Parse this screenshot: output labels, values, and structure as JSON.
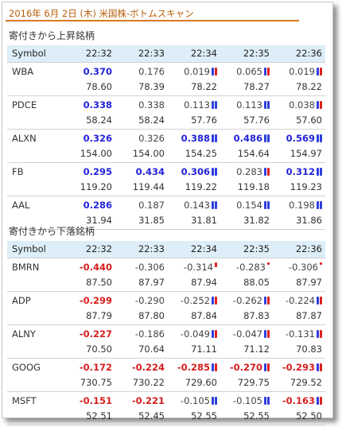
{
  "title": "2016年 6月 2日 (木) 米国株-ボトムスキャン",
  "gainers": {
    "section_title": "寄付きから上昇銘柄",
    "header": [
      "Symbol",
      "22:32",
      "22:33",
      "22:34",
      "22:35",
      "22:36"
    ],
    "rows": [
      {
        "symbol": "WBA",
        "rates": [
          {
            "v": "0.370",
            "s": "pos",
            "m": ""
          },
          {
            "v": "0.176",
            "s": "plain",
            "m": ""
          },
          {
            "v": "0.019",
            "s": "plain",
            "m": "br"
          },
          {
            "v": "0.065",
            "s": "plain",
            "m": "br"
          },
          {
            "v": "0.019",
            "s": "plain",
            "m": "br"
          }
        ],
        "prices": [
          "78.60",
          "78.39",
          "78.22",
          "78.27",
          "78.22"
        ]
      },
      {
        "symbol": "PDCE",
        "rates": [
          {
            "v": "0.338",
            "s": "pos",
            "m": ""
          },
          {
            "v": "0.338",
            "s": "plain",
            "m": ""
          },
          {
            "v": "0.113",
            "s": "plain",
            "m": "bb"
          },
          {
            "v": "0.113",
            "s": "plain",
            "m": "bb"
          },
          {
            "v": "0.038",
            "s": "plain",
            "m": "br"
          }
        ],
        "prices": [
          "58.24",
          "58.24",
          "57.76",
          "57.76",
          "57.60"
        ]
      },
      {
        "symbol": "ALXN",
        "rates": [
          {
            "v": "0.326",
            "s": "pos",
            "m": ""
          },
          {
            "v": "0.326",
            "s": "plain",
            "m": ""
          },
          {
            "v": "0.388",
            "s": "pos",
            "m": "bb"
          },
          {
            "v": "0.486",
            "s": "pos",
            "m": "bb"
          },
          {
            "v": "0.569",
            "s": "pos",
            "m": "bb"
          }
        ],
        "prices": [
          "154.00",
          "154.00",
          "154.25",
          "154.64",
          "154.97"
        ]
      },
      {
        "symbol": "FB",
        "rates": [
          {
            "v": "0.295",
            "s": "pos",
            "m": ""
          },
          {
            "v": "0.434",
            "s": "pos",
            "m": ""
          },
          {
            "v": "0.306",
            "s": "pos",
            "m": "bb"
          },
          {
            "v": "0.283",
            "s": "plain",
            "m": "br"
          },
          {
            "v": "0.312",
            "s": "pos",
            "m": "bb"
          }
        ],
        "prices": [
          "119.20",
          "119.44",
          "119.22",
          "119.18",
          "119.23"
        ]
      },
      {
        "symbol": "AAL",
        "rates": [
          {
            "v": "0.286",
            "s": "pos",
            "m": ""
          },
          {
            "v": "0.187",
            "s": "plain",
            "m": ""
          },
          {
            "v": "0.143",
            "s": "plain",
            "m": "bb"
          },
          {
            "v": "0.154",
            "s": "plain",
            "m": "bb"
          },
          {
            "v": "0.198",
            "s": "plain",
            "m": "bb"
          }
        ],
        "prices": [
          "31.94",
          "31.85",
          "31.81",
          "31.82",
          "31.86"
        ]
      }
    ]
  },
  "losers": {
    "section_title": "寄付きから下落銘柄",
    "header": [
      "Symbol",
      "22:32",
      "22:33",
      "22:34",
      "22:35",
      "22:36"
    ],
    "rows": [
      {
        "symbol": "BMRN",
        "rates": [
          {
            "v": "-0.440",
            "s": "neg",
            "m": ""
          },
          {
            "v": "-0.306",
            "s": "plain",
            "m": ""
          },
          {
            "v": "-0.314",
            "s": "plain",
            "m": "r6"
          },
          {
            "v": "-0.283",
            "s": "plain",
            "m": "r3"
          },
          {
            "v": "-0.306",
            "s": "plain",
            "m": "r3"
          }
        ],
        "prices": [
          "87.50",
          "87.97",
          "87.94",
          "88.05",
          "87.97"
        ]
      },
      {
        "symbol": "ADP",
        "rates": [
          {
            "v": "-0.299",
            "s": "neg",
            "m": ""
          },
          {
            "v": "-0.290",
            "s": "plain",
            "m": ""
          },
          {
            "v": "-0.252",
            "s": "plain",
            "m": "br"
          },
          {
            "v": "-0.262",
            "s": "plain",
            "m": "br"
          },
          {
            "v": "-0.224",
            "s": "plain",
            "m": "br"
          }
        ],
        "prices": [
          "87.79",
          "87.80",
          "87.84",
          "87.83",
          "87.87"
        ]
      },
      {
        "symbol": "ALNY",
        "rates": [
          {
            "v": "-0.227",
            "s": "neg",
            "m": ""
          },
          {
            "v": "-0.186",
            "s": "plain",
            "m": ""
          },
          {
            "v": "-0.049",
            "s": "plain",
            "m": "br"
          },
          {
            "v": "-0.047",
            "s": "plain",
            "m": "br"
          },
          {
            "v": "-0.131",
            "s": "plain",
            "m": "br"
          }
        ],
        "prices": [
          "70.50",
          "70.64",
          "71.11",
          "71.12",
          "70.83"
        ]
      },
      {
        "symbol": "GOOG",
        "rates": [
          {
            "v": "-0.172",
            "s": "neg",
            "m": ""
          },
          {
            "v": "-0.224",
            "s": "neg",
            "m": ""
          },
          {
            "v": "-0.285",
            "s": "neg",
            "m": "br"
          },
          {
            "v": "-0.270",
            "s": "neg",
            "m": "br"
          },
          {
            "v": "-0.293",
            "s": "neg",
            "m": "br"
          }
        ],
        "prices": [
          "730.75",
          "730.22",
          "729.60",
          "729.75",
          "729.52"
        ]
      },
      {
        "symbol": "MSFT",
        "rates": [
          {
            "v": "-0.151",
            "s": "neg",
            "m": ""
          },
          {
            "v": "-0.221",
            "s": "neg",
            "m": ""
          },
          {
            "v": "-0.105",
            "s": "plain",
            "m": "bb"
          },
          {
            "v": "-0.105",
            "s": "plain",
            "m": "bb"
          },
          {
            "v": "-0.163",
            "s": "neg",
            "m": "br"
          }
        ],
        "prices": [
          "52.51",
          "52.45",
          "52.55",
          "52.55",
          "52.50"
        ]
      }
    ]
  },
  "colors": {
    "title": "#b85d08",
    "header_bg": "#ddeef8",
    "positive": "#2323d8",
    "negative": "#d61e1e",
    "bar_blue": "#2f3fdf",
    "bar_red": "#e02020"
  }
}
